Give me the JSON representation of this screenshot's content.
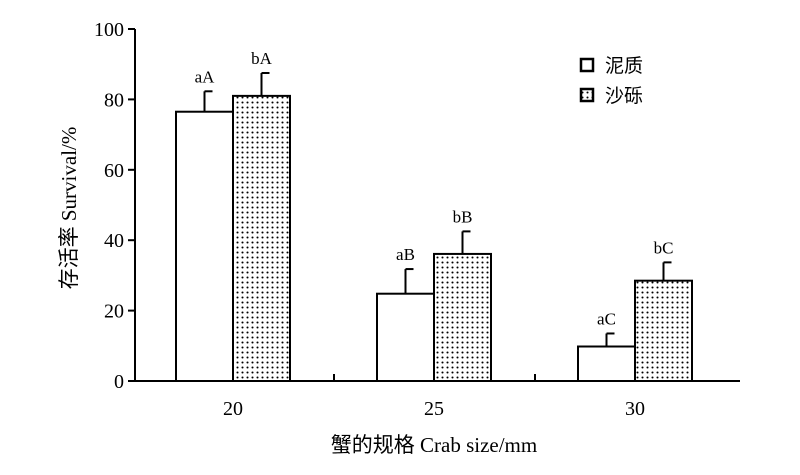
{
  "chart_data": {
    "type": "bar",
    "categories": [
      "20",
      "25",
      "30"
    ],
    "series": [
      {
        "name": "泥质",
        "fill": "white",
        "values": [
          76.5,
          24.8,
          9.8
        ],
        "error": [
          5.8,
          7.0,
          3.7
        ],
        "labels": [
          "aA",
          "aB",
          "aC"
        ]
      },
      {
        "name": "沙砾",
        "fill": "dotted",
        "values": [
          81.0,
          36.1,
          28.5
        ],
        "error": [
          6.5,
          6.4,
          5.2
        ],
        "labels": [
          "bA",
          "bB",
          "bC"
        ]
      }
    ],
    "xlabel": "蟹的规格 Crab size/mm",
    "ylabel": "存活率 Survival/%",
    "ylim": [
      0,
      100
    ],
    "yticks": [
      "0",
      "20",
      "40",
      "60",
      "80",
      "100"
    ],
    "grid": false,
    "legend_position": "top-right"
  }
}
